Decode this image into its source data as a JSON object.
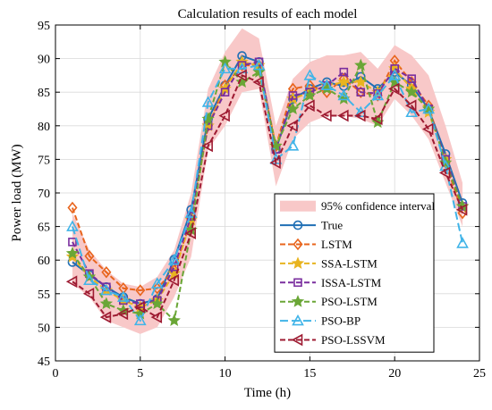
{
  "chart_data": {
    "type": "line",
    "title": "Calculation results of each model",
    "xlabel": "Time (h)",
    "ylabel": "Power load (MW)",
    "xlim": [
      0,
      25
    ],
    "ylim": [
      45,
      95
    ],
    "x_ticks": [
      0,
      5,
      10,
      15,
      20,
      25
    ],
    "y_ticks": [
      45,
      50,
      55,
      60,
      65,
      70,
      75,
      80,
      85,
      90,
      95
    ],
    "grid": true,
    "legend_position": "lower-right",
    "x": [
      1,
      2,
      3,
      4,
      5,
      6,
      7,
      8,
      9,
      10,
      11,
      12,
      13,
      14,
      15,
      16,
      17,
      18,
      19,
      20,
      21,
      22,
      23,
      24
    ],
    "confidence_band": {
      "name": "95% confidence interval",
      "color": "#f8c8c8",
      "lower": [
        56.5,
        54.5,
        51.0,
        50.0,
        49.0,
        50.0,
        54.5,
        60.5,
        76.5,
        80.0,
        85.0,
        85.5,
        71.0,
        78.0,
        80.5,
        81.5,
        81.5,
        81.0,
        80.0,
        84.0,
        81.5,
        78.0,
        71.5,
        65.0
      ],
      "upper": [
        67.0,
        61.5,
        58.5,
        56.5,
        56.0,
        57.5,
        61.5,
        70.0,
        85.5,
        91.0,
        94.5,
        93.0,
        80.0,
        87.0,
        89.5,
        90.5,
        90.5,
        91.0,
        88.5,
        92.0,
        90.5,
        87.5,
        80.0,
        71.5
      ]
    },
    "series": [
      {
        "name": "True",
        "color": "#1f6fb5",
        "dash": "",
        "marker": "circle",
        "values": [
          59.7,
          57.8,
          56.0,
          54.5,
          53.5,
          54.2,
          60.1,
          67.5,
          81.0,
          86.0,
          90.4,
          89.5,
          76.5,
          84.0,
          85.5,
          86.5,
          85.9,
          87.3,
          85.5,
          88.0,
          86.0,
          82.5,
          75.8,
          68.5
        ]
      },
      {
        "name": "LSTM",
        "color": "#e8641c",
        "dash": "6,3",
        "marker": "diamond",
        "values": [
          67.8,
          60.6,
          58.2,
          55.8,
          55.5,
          55.8,
          58.5,
          66.0,
          80.0,
          86.0,
          89.0,
          89.0,
          77.0,
          85.5,
          86.0,
          85.0,
          87.0,
          85.0,
          84.5,
          89.7,
          86.5,
          83.0,
          74.5,
          67.0
        ]
      },
      {
        "name": "SSA-LSTM",
        "color": "#e8b420",
        "dash": "6,3",
        "marker": "star",
        "values": [
          60.5,
          57.5,
          55.5,
          54.0,
          53.0,
          54.0,
          58.0,
          66.0,
          80.0,
          85.5,
          89.5,
          89.0,
          77.0,
          84.0,
          85.0,
          86.0,
          86.5,
          86.5,
          85.0,
          88.5,
          85.5,
          82.0,
          75.0,
          68.0
        ]
      },
      {
        "name": "ISSA-LSTM",
        "color": "#7a2e9e",
        "dash": "6,3",
        "marker": "square",
        "values": [
          62.7,
          58.0,
          56.0,
          54.0,
          53.5,
          54.0,
          59.0,
          66.5,
          80.0,
          85.0,
          89.0,
          89.5,
          76.5,
          84.5,
          85.0,
          86.0,
          88.0,
          85.0,
          84.8,
          88.5,
          87.0,
          82.5,
          75.0,
          68.0
        ]
      },
      {
        "name": "PSO-LSTM",
        "color": "#6aa636",
        "dash": "6,3",
        "marker": "star",
        "values": [
          61.0,
          57.5,
          53.5,
          52.5,
          52.0,
          53.5,
          51.0,
          64.5,
          81.0,
          89.5,
          86.5,
          88.0,
          77.0,
          82.5,
          84.5,
          85.5,
          84.0,
          89.0,
          80.5,
          86.5,
          85.0,
          82.5,
          74.5,
          68.0
        ]
      },
      {
        "name": "PSO-BP",
        "color": "#40b4e8",
        "dash": "9,4",
        "marker": "triangle",
        "values": [
          65.0,
          57.0,
          55.5,
          54.5,
          51.0,
          56.5,
          60.0,
          67.0,
          83.5,
          88.5,
          88.5,
          89.0,
          75.0,
          77.0,
          87.5,
          86.0,
          84.5,
          82.0,
          84.5,
          87.5,
          82.0,
          82.5,
          74.0,
          62.5
        ]
      },
      {
        "name": "PSO-LSSVM",
        "color": "#9e1b32",
        "dash": "6,3",
        "marker": "triangle-left",
        "values": [
          56.8,
          55.0,
          51.5,
          52.0,
          53.0,
          51.5,
          57.0,
          64.0,
          77.0,
          81.5,
          87.5,
          86.5,
          74.5,
          80.0,
          83.0,
          81.5,
          81.5,
          81.5,
          81.0,
          85.5,
          83.0,
          79.5,
          73.0,
          67.5
        ]
      }
    ]
  }
}
